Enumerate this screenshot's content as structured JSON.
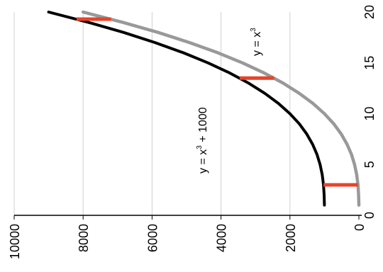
{
  "chart_data": {
    "type": "line",
    "orientation": "rotated 90 degrees counter-clockwise",
    "title": "",
    "xlabel": "",
    "ylabel": "",
    "xlim": [
      0,
      20
    ],
    "ylim": [
      0,
      10000
    ],
    "x_ticks": [
      0,
      5,
      10,
      15,
      20
    ],
    "y_ticks": [
      0,
      2000,
      4000,
      6000,
      8000,
      10000
    ],
    "grid": "major gridlines for the value axis",
    "legend": "none",
    "colors": {
      "cubic_plus_1000": "#000000",
      "cubic": "#999999",
      "gap_marker": "#e8432a",
      "grid": "#d0d0d0",
      "axis": "#000000"
    },
    "series": [
      {
        "name": "y = x³ + 1000",
        "label_parts": [
          "y = x",
          "3",
          " + 1000"
        ],
        "color": "#000000",
        "x": [
          1,
          2,
          3,
          4,
          5,
          6,
          7,
          8,
          9,
          10,
          11,
          12,
          13,
          14,
          15,
          16,
          17,
          18,
          19,
          20
        ],
        "y": [
          1001,
          1008,
          1027,
          1064,
          1125,
          1216,
          1343,
          1512,
          1729,
          2000,
          2331,
          2728,
          3197,
          3744,
          4375,
          5096,
          5913,
          6832,
          7859,
          9000
        ]
      },
      {
        "name": "y = x³",
        "label_parts": [
          "y = x",
          "3",
          ""
        ],
        "color": "#999999",
        "x": [
          1,
          2,
          3,
          4,
          5,
          6,
          7,
          8,
          9,
          10,
          11,
          12,
          13,
          14,
          15,
          16,
          17,
          18,
          19,
          20
        ],
        "y": [
          1,
          8,
          27,
          64,
          125,
          216,
          343,
          512,
          729,
          1000,
          1331,
          1728,
          2197,
          2744,
          3375,
          4096,
          4913,
          5832,
          6859,
          8000
        ]
      }
    ],
    "gap_markers": [
      {
        "x": 3,
        "y_from": 27,
        "y_to": 1027
      },
      {
        "x": 13.5,
        "y_from": 2460,
        "y_to": 3460
      },
      {
        "x": 19.3,
        "y_from": 7190,
        "y_to": 8190
      }
    ]
  }
}
